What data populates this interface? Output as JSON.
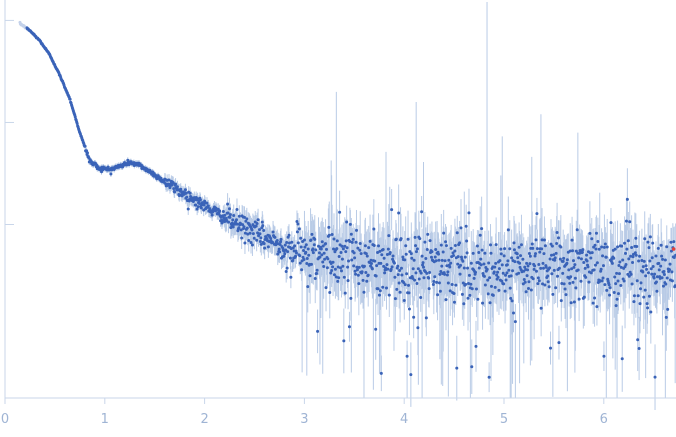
{
  "chart_data": {
    "type": "scatter",
    "title": "",
    "xlabel": "",
    "ylabel": "",
    "xlim": [
      0,
      6.72
    ],
    "x_ticks": [
      "0",
      "1",
      "2",
      "3",
      "4",
      "5",
      "6"
    ],
    "x_tick_values": [
      0,
      1,
      2,
      3,
      4,
      5,
      6
    ],
    "y_scale": "log",
    "y_tick_labels_visible": false,
    "y_range_decades": [
      0,
      3.9
    ],
    "y_major_ticks_decades": [
      1.7,
      2.7,
      3.7
    ],
    "grid": false,
    "legend": "none",
    "colors": {
      "points": "#3a63b8",
      "error_bars": "#b9cbe6",
      "excluded_points": "#c3d1ea",
      "outlier_point": "#e0403a",
      "axis": "#c9d6ea"
    },
    "series": [
      {
        "x_start": 0.15,
        "x_end": 6.72,
        "profile_x": [
          0.15,
          0.25,
          0.35,
          0.45,
          0.55,
          0.65,
          0.75,
          0.85,
          0.95,
          1.05,
          1.15,
          1.25,
          1.35,
          1.45,
          1.6,
          1.8,
          2.0,
          2.2,
          2.5,
          2.8,
          3.2,
          3.6,
          4.0,
          4.5,
          5.0,
          5.5,
          6.0,
          6.5,
          6.72
        ],
        "profile_log_y": [
          3.67,
          3.6,
          3.5,
          3.36,
          3.16,
          2.93,
          2.6,
          2.32,
          2.25,
          2.24,
          2.27,
          2.31,
          2.28,
          2.22,
          2.12,
          2.0,
          1.88,
          1.77,
          1.62,
          1.48,
          1.36,
          1.32,
          1.3,
          1.29,
          1.28,
          1.28,
          1.28,
          1.28,
          1.28
        ],
        "outlier": {
          "x": 6.72,
          "log_y": 1.46
        }
      }
    ]
  }
}
